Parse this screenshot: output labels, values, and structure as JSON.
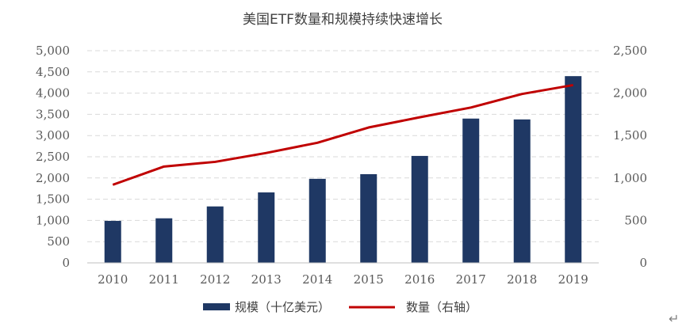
{
  "chart_data": {
    "type": "bar",
    "title": "美国ETF数量和规模持续快速增长",
    "categories": [
      "2010",
      "2011",
      "2012",
      "2013",
      "2014",
      "2015",
      "2016",
      "2017",
      "2018",
      "2019"
    ],
    "series": [
      {
        "name": "规模（十亿美元）",
        "type": "bar",
        "axis": "left",
        "values": [
          990,
          1050,
          1330,
          1660,
          1980,
          2090,
          2520,
          3400,
          3380,
          4400
        ]
      },
      {
        "name": "数量（右轴）",
        "type": "line",
        "axis": "right",
        "values": [
          920,
          1135,
          1190,
          1295,
          1415,
          1595,
          1715,
          1830,
          1990,
          2095
        ]
      }
    ],
    "y_left": {
      "min": 0,
      "max": 5000,
      "ticks": [
        "0",
        "500",
        "1,000",
        "1,500",
        "2,000",
        "2,500",
        "3,000",
        "3,500",
        "4,000",
        "4,500",
        "5,000"
      ]
    },
    "y_right": {
      "min": 0,
      "max": 2500,
      "ticks": [
        "0",
        "500",
        "1,000",
        "1,500",
        "2,000",
        "2,500"
      ]
    },
    "grid": true,
    "legend_position": "bottom",
    "colors": {
      "bar": "#1f3864",
      "line": "#c00000"
    }
  },
  "return_glyph": "↵"
}
